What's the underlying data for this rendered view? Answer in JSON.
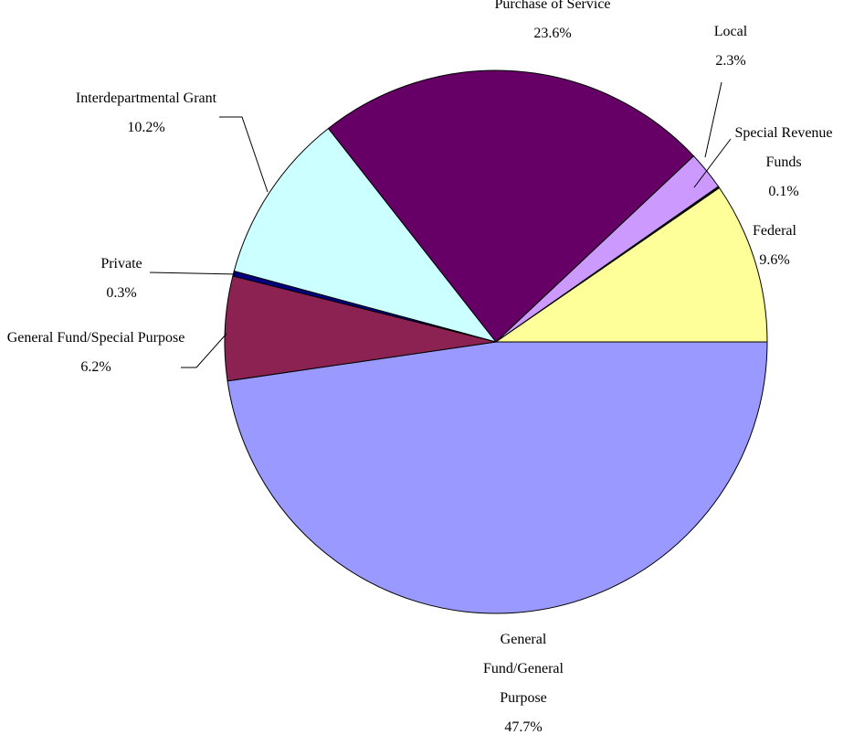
{
  "chart_data": {
    "type": "pie",
    "categories": [
      "General Fund/General Purpose",
      "General Fund/Special Purpose",
      "Private",
      "Interdepartmental Grant",
      "Purchase of Service",
      "Local",
      "Special Revenue Funds",
      "Federal"
    ],
    "values": [
      47.7,
      6.2,
      0.3,
      10.2,
      23.6,
      2.3,
      0.1,
      9.6
    ],
    "value_labels": [
      "47.7%",
      "6.2%",
      "0.3%",
      "10.2%",
      "23.6%",
      "2.3%",
      "0.1%",
      "9.6%"
    ],
    "colors": [
      "#9999ff",
      "#8b2252",
      "#000080",
      "#ccffff",
      "#660066",
      "#cc99ff",
      "#000000",
      "#ffff99"
    ]
  }
}
